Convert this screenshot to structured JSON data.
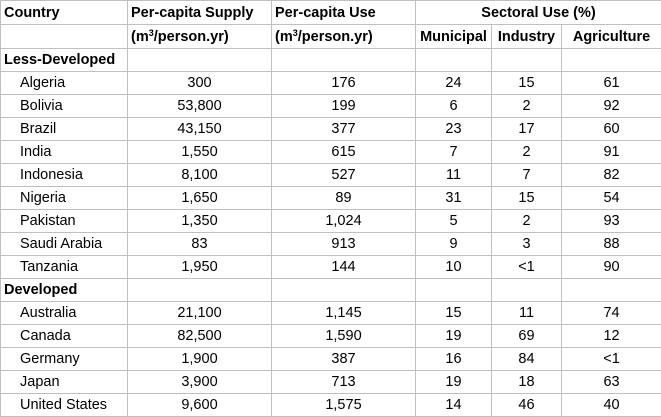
{
  "header": {
    "country": "Country",
    "supply": "Per-capita Supply",
    "use": "Per-capita Use",
    "sectoral": "Sectoral Use (%)",
    "unit_pre": "(m",
    "unit_sup": "3",
    "unit_post": "/person.yr)",
    "municipal": "Municipal",
    "industry": "Industry",
    "agriculture": "Agriculture"
  },
  "groups": [
    {
      "label": "Less-Developed",
      "rows": [
        {
          "country": "Algeria",
          "supply": "300",
          "use": "176",
          "municipal": "24",
          "industry": "15",
          "agriculture": "61"
        },
        {
          "country": "Bolivia",
          "supply": "53,800",
          "use": "199",
          "municipal": "6",
          "industry": "2",
          "agriculture": "92"
        },
        {
          "country": "Brazil",
          "supply": "43,150",
          "use": "377",
          "municipal": "23",
          "industry": "17",
          "agriculture": "60"
        },
        {
          "country": "India",
          "supply": "1,550",
          "use": "615",
          "municipal": "7",
          "industry": "2",
          "agriculture": "91"
        },
        {
          "country": "Indonesia",
          "supply": "8,100",
          "use": "527",
          "municipal": "11",
          "industry": "7",
          "agriculture": "82"
        },
        {
          "country": "Nigeria",
          "supply": "1,650",
          "use": "89",
          "municipal": "31",
          "industry": "15",
          "agriculture": "54"
        },
        {
          "country": "Pakistan",
          "supply": "1,350",
          "use": "1,024",
          "municipal": "5",
          "industry": "2",
          "agriculture": "93"
        },
        {
          "country": "Saudi Arabia",
          "supply": "83",
          "use": "913",
          "municipal": "9",
          "industry": "3",
          "agriculture": "88"
        },
        {
          "country": "Tanzania",
          "supply": "1,950",
          "use": "144",
          "municipal": "10",
          "industry": "<1",
          "agriculture": "90"
        }
      ]
    },
    {
      "label": "Developed",
      "rows": [
        {
          "country": "Australia",
          "supply": "21,100",
          "use": "1,145",
          "municipal": "15",
          "industry": "11",
          "agriculture": "74"
        },
        {
          "country": "Canada",
          "supply": "82,500",
          "use": "1,590",
          "municipal": "19",
          "industry": "69",
          "agriculture": "12"
        },
        {
          "country": "Germany",
          "supply": "1,900",
          "use": "387",
          "municipal": "16",
          "industry": "84",
          "agriculture": "<1"
        },
        {
          "country": "Japan",
          "supply": "3,900",
          "use": "713",
          "municipal": "19",
          "industry": "18",
          "agriculture": "63"
        },
        {
          "country": "United States",
          "supply": "9,600",
          "use": "1,575",
          "municipal": "14",
          "industry": "46",
          "agriculture": "40"
        }
      ]
    }
  ]
}
